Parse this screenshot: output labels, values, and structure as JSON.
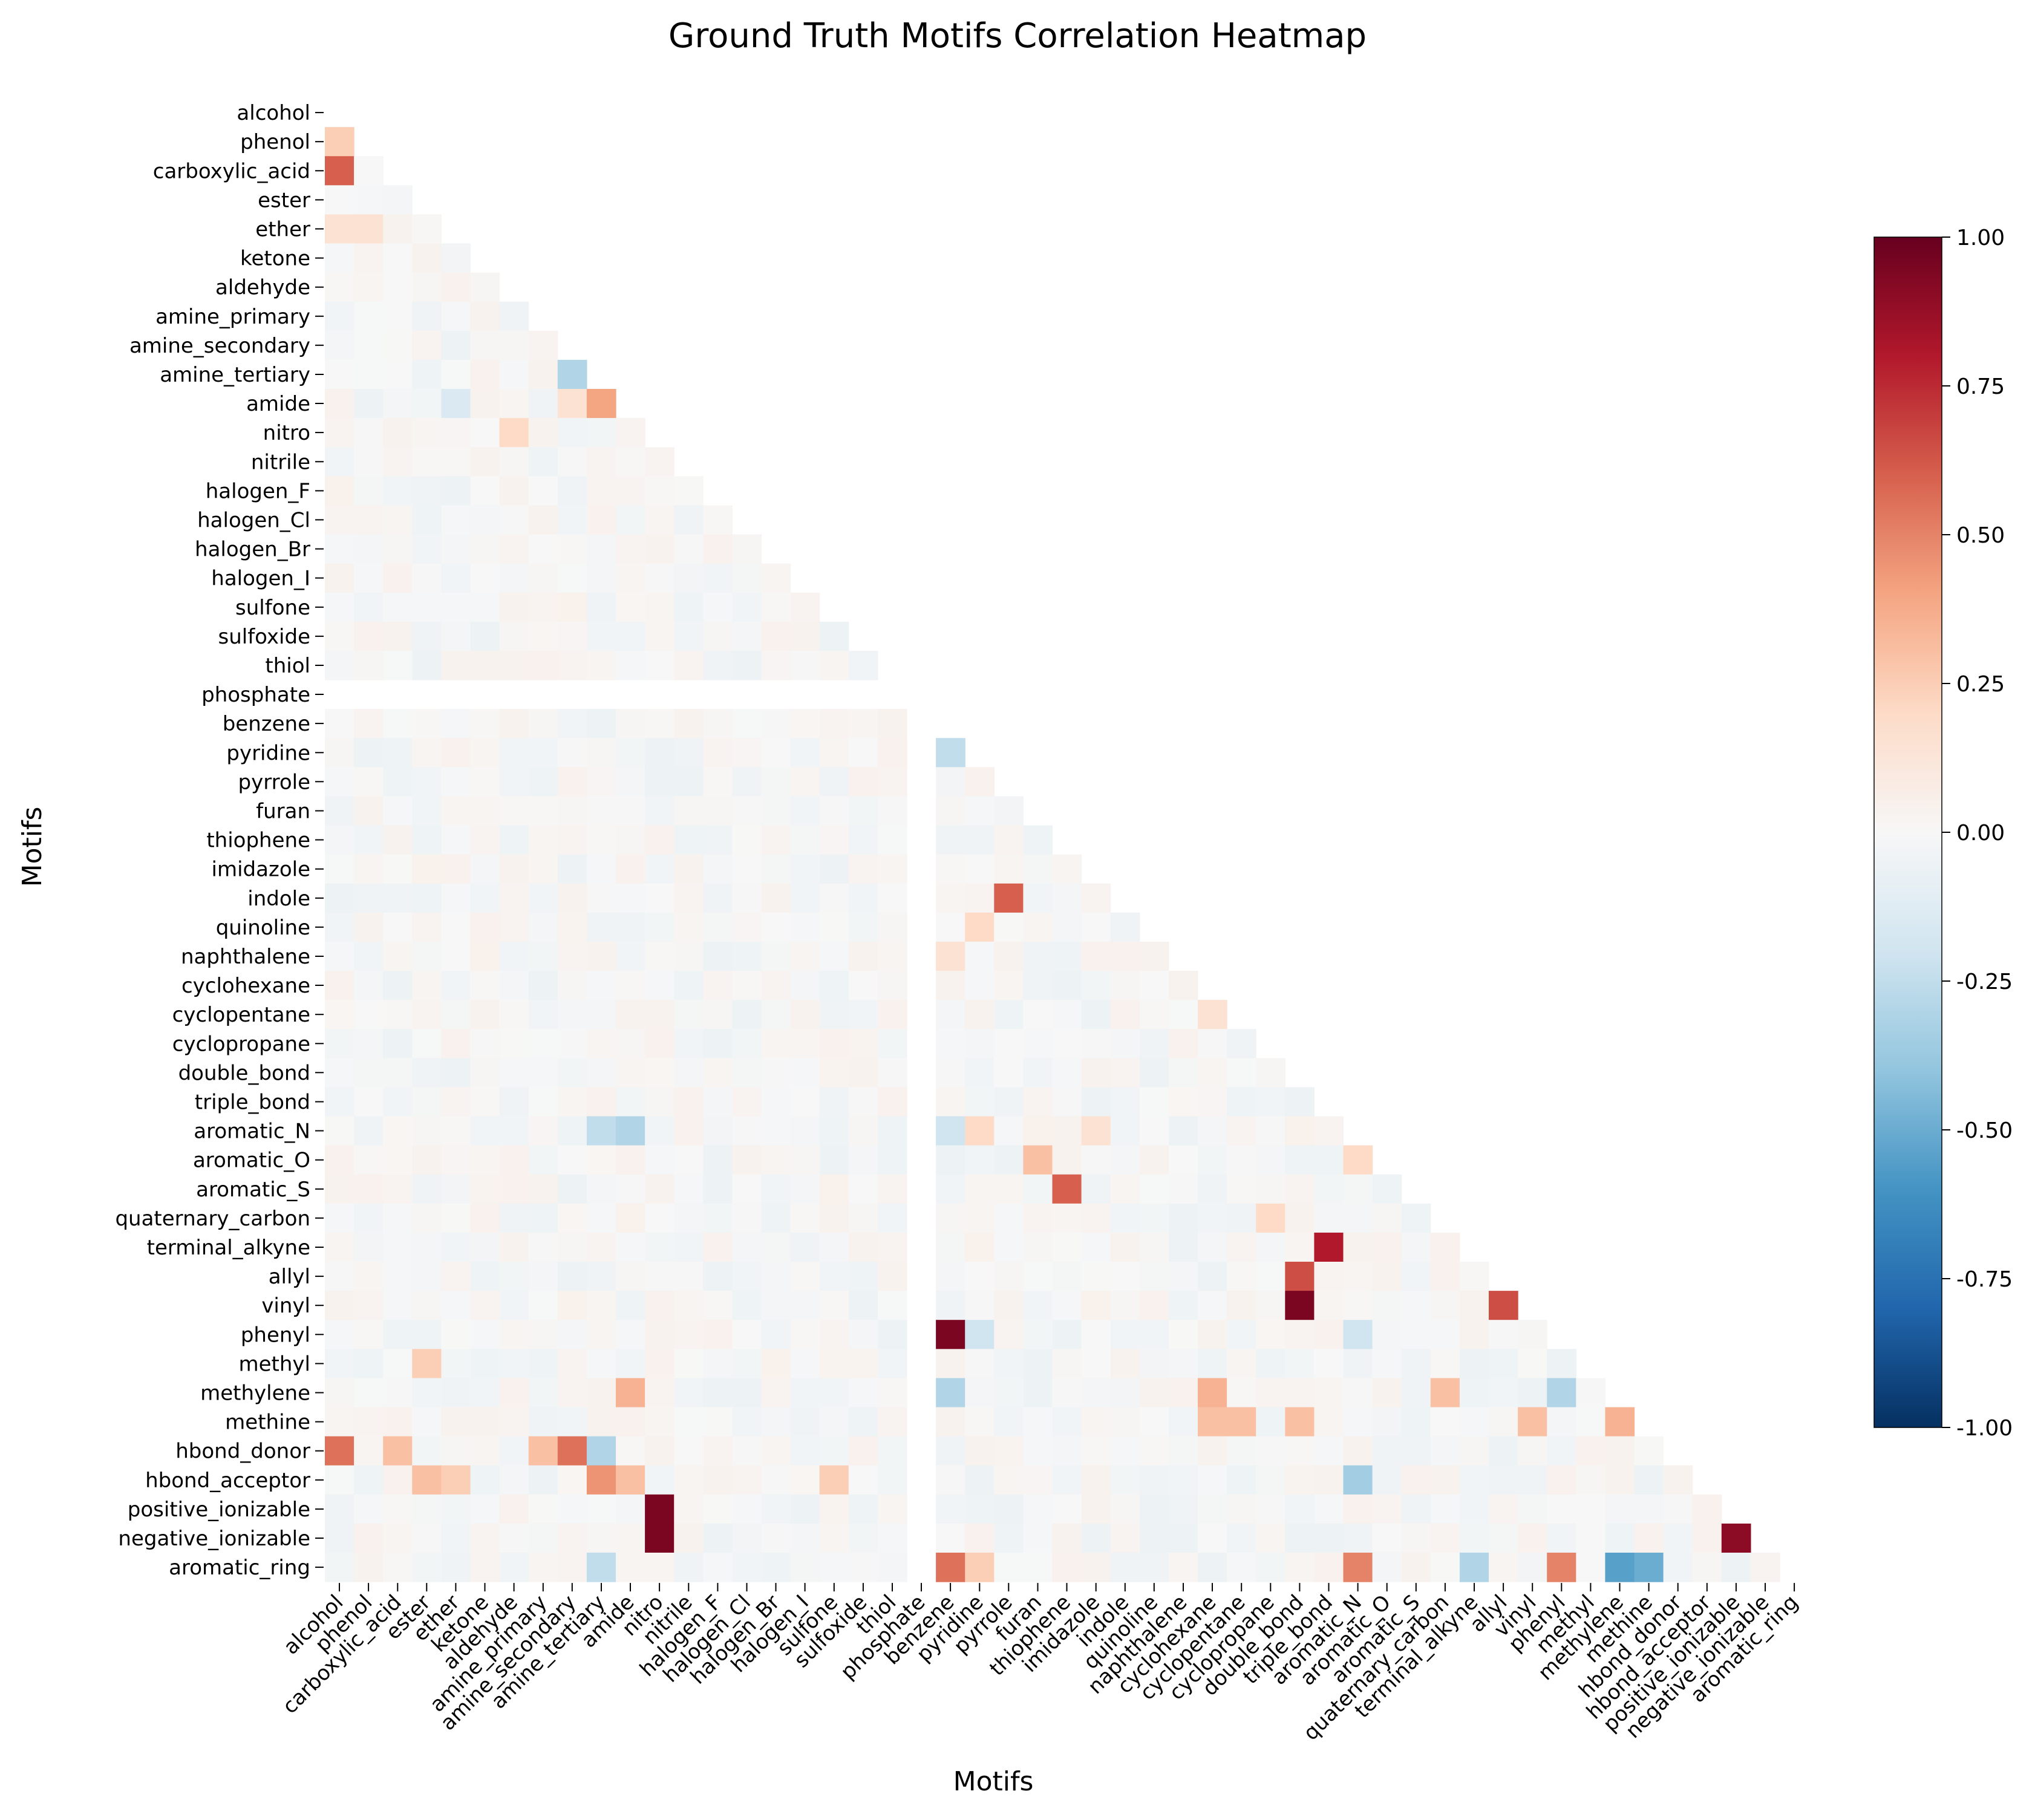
{
  "chart_data": {
    "type": "heatmap",
    "title": "Ground Truth Motifs Correlation Heatmap",
    "xlabel": "Motifs",
    "ylabel": "Motifs",
    "mask": "upper-triangle",
    "colormap": "RdBu_r",
    "vmin": -1.0,
    "vmax": 1.0,
    "colorbar_ticks": [
      "1.00",
      "0.75",
      "0.50",
      "0.25",
      "0.00",
      "-0.25",
      "-0.50",
      "-0.75",
      "-1.00"
    ],
    "colorbar_tick_values": [
      1.0,
      0.75,
      0.5,
      0.25,
      0.0,
      -0.25,
      -0.5,
      -0.75,
      -1.0
    ],
    "labels": [
      "alcohol",
      "phenol",
      "carboxylic_acid",
      "ester",
      "ether",
      "ketone",
      "aldehyde",
      "amine_primary",
      "amine_secondary",
      "amine_tertiary",
      "amide",
      "nitro",
      "nitrile",
      "halogen_F",
      "halogen_Cl",
      "halogen_Br",
      "halogen_I",
      "sulfone",
      "sulfoxide",
      "thiol",
      "phosphate",
      "benzene",
      "pyridine",
      "pyrrole",
      "furan",
      "thiophene",
      "imidazole",
      "indole",
      "quinoline",
      "naphthalene",
      "cyclohexane",
      "cyclopentane",
      "cyclopropane",
      "double_bond",
      "triple_bond",
      "aromatic_N",
      "aromatic_O",
      "aromatic_S",
      "quaternary_carbon",
      "terminal_alkyne",
      "allyl",
      "vinyl",
      "phenyl",
      "methyl",
      "methylene",
      "methine",
      "hbond_donor",
      "hbond_acceptor",
      "positive_ionizable",
      "negative_ionizable",
      "aromatic_ring"
    ],
    "undefined_rows": [
      "phosphate"
    ],
    "notable_correlations": [
      {
        "row": "phenol",
        "col": "alcohol",
        "value": 0.25
      },
      {
        "row": "carboxylic_acid",
        "col": "alcohol",
        "value": 0.6
      },
      {
        "row": "ether",
        "col": "alcohol",
        "value": 0.15
      },
      {
        "row": "ether",
        "col": "phenol",
        "value": 0.15
      },
      {
        "row": "amine_tertiary",
        "col": "amine_secondary",
        "value": -0.3
      },
      {
        "row": "amide",
        "col": "amine_secondary",
        "value": 0.15
      },
      {
        "row": "amide",
        "col": "amine_tertiary",
        "value": 0.4
      },
      {
        "row": "amide",
        "col": "ether",
        "value": -0.15
      },
      {
        "row": "nitro",
        "col": "aldehyde",
        "value": 0.2
      },
      {
        "row": "pyridine",
        "col": "benzene",
        "value": -0.25
      },
      {
        "row": "indole",
        "col": "pyrrole",
        "value": 0.6
      },
      {
        "row": "quinoline",
        "col": "pyridine",
        "value": 0.2
      },
      {
        "row": "naphthalene",
        "col": "benzene",
        "value": 0.15
      },
      {
        "row": "cyclopentane",
        "col": "cyclohexane",
        "value": 0.15
      },
      {
        "row": "aromatic_N",
        "col": "amine_tertiary",
        "value": -0.25
      },
      {
        "row": "aromatic_N",
        "col": "amide",
        "value": -0.3
      },
      {
        "row": "aromatic_N",
        "col": "benzene",
        "value": -0.2
      },
      {
        "row": "aromatic_N",
        "col": "pyridine",
        "value": 0.2
      },
      {
        "row": "aromatic_N",
        "col": "imidazole",
        "value": 0.15
      },
      {
        "row": "aromatic_O",
        "col": "furan",
        "value": 0.3
      },
      {
        "row": "aromatic_O",
        "col": "aromatic_N",
        "value": 0.2
      },
      {
        "row": "aromatic_S",
        "col": "thiophene",
        "value": 0.6
      },
      {
        "row": "quaternary_carbon",
        "col": "cyclopropane",
        "value": 0.2
      },
      {
        "row": "terminal_alkyne",
        "col": "triple_bond",
        "value": 0.8
      },
      {
        "row": "allyl",
        "col": "double_bond",
        "value": 0.65
      },
      {
        "row": "vinyl",
        "col": "double_bond",
        "value": 0.95
      },
      {
        "row": "vinyl",
        "col": "allyl",
        "value": 0.65
      },
      {
        "row": "phenyl",
        "col": "benzene",
        "value": 0.95
      },
      {
        "row": "phenyl",
        "col": "pyridine",
        "value": -0.2
      },
      {
        "row": "phenyl",
        "col": "aromatic_N",
        "value": -0.2
      },
      {
        "row": "methyl",
        "col": "ester",
        "value": 0.25
      },
      {
        "row": "methylene",
        "col": "amide",
        "value": 0.35
      },
      {
        "row": "methylene",
        "col": "benzene",
        "value": -0.3
      },
      {
        "row": "methylene",
        "col": "cyclohexane",
        "value": 0.35
      },
      {
        "row": "methylene",
        "col": "quaternary_carbon",
        "value": 0.3
      },
      {
        "row": "methylene",
        "col": "phenyl",
        "value": -0.3
      },
      {
        "row": "methine",
        "col": "cyclohexane",
        "value": 0.3
      },
      {
        "row": "methine",
        "col": "cyclopentane",
        "value": 0.3
      },
      {
        "row": "methine",
        "col": "double_bond",
        "value": 0.3
      },
      {
        "row": "methine",
        "col": "vinyl",
        "value": 0.3
      },
      {
        "row": "methine",
        "col": "methylene",
        "value": 0.35
      },
      {
        "row": "hbond_donor",
        "col": "alcohol",
        "value": 0.55
      },
      {
        "row": "hbond_donor",
        "col": "carboxylic_acid",
        "value": 0.3
      },
      {
        "row": "hbond_donor",
        "col": "amine_primary",
        "value": 0.3
      },
      {
        "row": "hbond_donor",
        "col": "amine_secondary",
        "value": 0.55
      },
      {
        "row": "hbond_donor",
        "col": "amine_tertiary",
        "value": -0.3
      },
      {
        "row": "hbond_acceptor",
        "col": "ester",
        "value": 0.3
      },
      {
        "row": "hbond_acceptor",
        "col": "ether",
        "value": 0.25
      },
      {
        "row": "hbond_acceptor",
        "col": "amine_tertiary",
        "value": 0.45
      },
      {
        "row": "hbond_acceptor",
        "col": "amide",
        "value": 0.3
      },
      {
        "row": "hbond_acceptor",
        "col": "sulfone",
        "value": 0.25
      },
      {
        "row": "hbond_acceptor",
        "col": "aromatic_N",
        "value": -0.35
      },
      {
        "row": "positive_ionizable",
        "col": "nitro",
        "value": 0.95
      },
      {
        "row": "negative_ionizable",
        "col": "nitro",
        "value": 0.95
      },
      {
        "row": "negative_ionizable",
        "col": "positive_ionizable",
        "value": 0.9
      },
      {
        "row": "aromatic_ring",
        "col": "benzene",
        "value": 0.55
      },
      {
        "row": "aromatic_ring",
        "col": "pyridine",
        "value": 0.25
      },
      {
        "row": "aromatic_ring",
        "col": "aromatic_N",
        "value": 0.5
      },
      {
        "row": "aromatic_ring",
        "col": "terminal_alkyne",
        "value": -0.3
      },
      {
        "row": "aromatic_ring",
        "col": "phenyl",
        "value": 0.5
      },
      {
        "row": "aromatic_ring",
        "col": "methylene",
        "value": -0.55
      },
      {
        "row": "aromatic_ring",
        "col": "methine",
        "value": -0.5
      },
      {
        "row": "aromatic_ring",
        "col": "amine_tertiary",
        "value": -0.25
      }
    ]
  }
}
